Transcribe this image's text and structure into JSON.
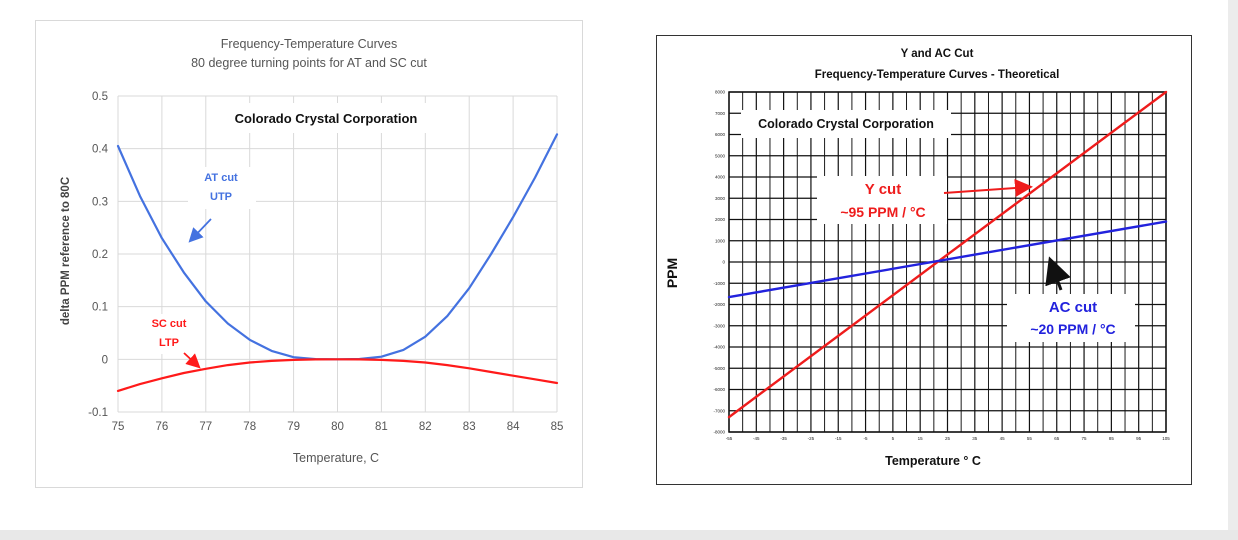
{
  "chart_data": [
    {
      "type": "line",
      "title": "Frequency-Temperature Curves",
      "subtitle": "80 degree turning points for AT and SC cut",
      "annotation": "Colorado  Crystal Corporation",
      "xlabel": "Temperature, C",
      "ylabel": "delta PPM reference to 80C",
      "xlim": [
        75,
        85
      ],
      "ylim": [
        -0.1,
        0.5
      ],
      "xticks": [
        "75",
        "76",
        "77",
        "78",
        "79",
        "80",
        "81",
        "82",
        "83",
        "84",
        "85"
      ],
      "yticks": [
        "-0.1",
        "0",
        "0.1",
        "0.2",
        "0.3",
        "0.4",
        "0.5"
      ],
      "grid": true,
      "series": [
        {
          "name": "AT cut UTP",
          "label_line1": "AT cut",
          "label_line2": "UTP",
          "color": "#4472e0",
          "x": [
            75,
            75.5,
            76,
            76.5,
            77,
            77.5,
            78,
            78.5,
            79,
            79.5,
            80,
            80.5,
            81,
            81.5,
            82,
            82.5,
            83,
            83.5,
            84,
            84.5,
            85
          ],
          "y": [
            0.405,
            0.31,
            0.23,
            0.165,
            0.11,
            0.068,
            0.037,
            0.016,
            0.004,
            0.0005,
            0,
            0.0006,
            0.005,
            0.018,
            0.043,
            0.082,
            0.135,
            0.2,
            0.27,
            0.345,
            0.427
          ]
        },
        {
          "name": "SC cut LTP",
          "label_line1": "SC cut",
          "label_line2": "LTP",
          "color": "#ff1a1a",
          "x": [
            75,
            75.5,
            76,
            76.5,
            77,
            77.5,
            78,
            78.5,
            79,
            79.5,
            80,
            80.5,
            81,
            81.5,
            82,
            82.5,
            83,
            83.5,
            84,
            84.5,
            85
          ],
          "y": [
            -0.06,
            -0.047,
            -0.036,
            -0.026,
            -0.018,
            -0.011,
            -0.006,
            -0.003,
            -0.001,
            -0.0002,
            0,
            -0.0002,
            -0.001,
            -0.003,
            -0.006,
            -0.011,
            -0.017,
            -0.024,
            -0.031,
            -0.038,
            -0.045
          ]
        }
      ]
    },
    {
      "type": "line",
      "title": "Y and AC Cut",
      "subtitle": "Frequency-Temperature  Curves - Theoretical",
      "annotation": "Colorado  Crystal Corporation",
      "xlabel": "Temperature  ° C",
      "ylabel": "PPM",
      "xlim": [
        -55,
        105
      ],
      "ylim": [
        -8000,
        8000
      ],
      "xticks": [
        "-55",
        "-45",
        "-35",
        "-25",
        "-15",
        "-5",
        "5",
        "15",
        "25",
        "35",
        "45",
        "55",
        "65",
        "75",
        "85",
        "95",
        "105"
      ],
      "yticks": [
        "-8000",
        "-7000",
        "-6000",
        "-5000",
        "-4000",
        "-3000",
        "-2000",
        "-1000",
        "0",
        "1000",
        "2000",
        "3000",
        "4000",
        "5000",
        "6000",
        "7000",
        "8000"
      ],
      "grid": true,
      "series": [
        {
          "name": "Y cut",
          "label_line1": "Y cut",
          "label_line2": "~95 PPM / °C",
          "color": "#ee1c1c",
          "x": [
            -55,
            105
          ],
          "y": [
            -7300,
            8000
          ]
        },
        {
          "name": "AC cut",
          "label_line1": "AC cut",
          "label_line2": "~20 PPM / °C",
          "color": "#2222dd",
          "x": [
            -55,
            105
          ],
          "y": [
            -1650,
            1900
          ]
        }
      ]
    }
  ]
}
